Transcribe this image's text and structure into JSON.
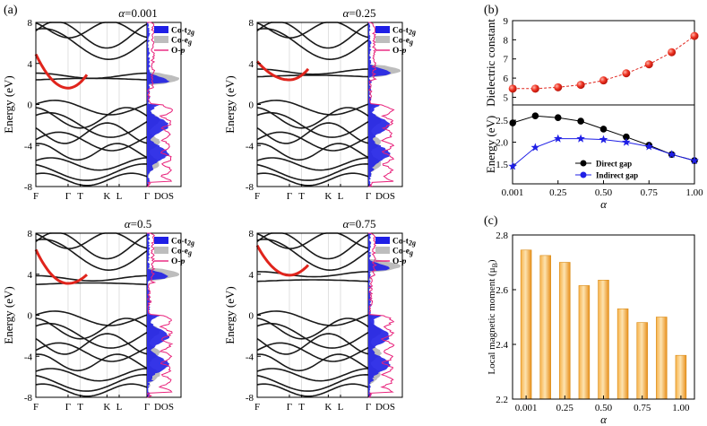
{
  "panel_labels": {
    "a": "(a)",
    "b": "(b)",
    "c": "(c)"
  },
  "chart_data": [
    {
      "type": "line",
      "title": "α=0.001",
      "title_prefix": "α",
      "title_value": "=0.001",
      "ylabel": "Energy (eV)",
      "ylim": [
        -8,
        8
      ],
      "yticks": [
        "-8",
        "-4",
        "0",
        "4",
        "8"
      ],
      "kpath": [
        "F",
        "Γ",
        "T",
        "K",
        "L",
        "Γ"
      ],
      "dos_xlabel": "DOS",
      "legend": [
        "Co-t2g",
        "Co-eg",
        "O-p"
      ],
      "highlight_band": {
        "min_at": "Γ",
        "min_energy": 1.6,
        "start_energy": 4.9,
        "end_energy": 5.4
      },
      "colors": {
        "band": "#1a1a1a",
        "highlight": "#e0241c",
        "t2g": "#1f1fe6",
        "eg": "#bdbdbd",
        "op": "#e8207a"
      }
    },
    {
      "type": "line",
      "title": "α=0.25",
      "title_prefix": "α",
      "title_value": "=0.25",
      "ylabel": "Energy (eV)",
      "ylim": [
        -8,
        8
      ],
      "yticks": [
        "-8",
        "-4",
        "0",
        "4",
        "8"
      ],
      "kpath": [
        "F",
        "Γ",
        "T",
        "K",
        "L",
        "Γ"
      ],
      "dos_xlabel": "DOS",
      "legend": [
        "Co-t2g",
        "Co-eg",
        "O-p"
      ],
      "highlight_band": {
        "min_at": "Γ",
        "min_energy": 2.4,
        "start_energy": 4.2,
        "end_energy": 5.5
      },
      "colors": {
        "band": "#1a1a1a",
        "highlight": "#e0241c",
        "t2g": "#1f1fe6",
        "eg": "#bdbdbd",
        "op": "#e8207a"
      }
    },
    {
      "type": "line",
      "title": "α=0.5",
      "title_prefix": "α",
      "title_value": "=0.5",
      "ylabel": "Energy (eV)",
      "ylim": [
        -8,
        8
      ],
      "yticks": [
        "-8",
        "-4",
        "0",
        "4",
        "8"
      ],
      "kpath": [
        "F",
        "Γ",
        "T",
        "K",
        "L",
        "Γ"
      ],
      "dos_xlabel": "DOS",
      "legend": [
        "Co-t2g",
        "Co-eg",
        "O-p"
      ],
      "highlight_band": {
        "min_at": "Γ",
        "min_energy": 3.1,
        "start_energy": 6.4,
        "end_energy": 5.6
      },
      "colors": {
        "band": "#1a1a1a",
        "highlight": "#e0241c",
        "t2g": "#1f1fe6",
        "eg": "#bdbdbd",
        "op": "#e8207a"
      }
    },
    {
      "type": "line",
      "title": "α=0.75",
      "title_prefix": "α",
      "title_value": "=0.75",
      "ylabel": "Energy (eV)",
      "ylim": [
        -8,
        8
      ],
      "yticks": [
        "-8",
        "-4",
        "0",
        "4",
        "8"
      ],
      "kpath": [
        "F",
        "Γ",
        "T",
        "K",
        "L",
        "Γ"
      ],
      "dos_xlabel": "DOS",
      "legend": [
        "Co-t2g",
        "Co-eg",
        "O-p"
      ],
      "highlight_band": {
        "min_at": "Γ",
        "min_energy": 3.9,
        "start_energy": 6.8,
        "end_energy": 6.8
      },
      "colors": {
        "band": "#1a1a1a",
        "highlight": "#e0241c",
        "t2g": "#1f1fe6",
        "eg": "#bdbdbd",
        "op": "#e8207a"
      }
    },
    {
      "type": "line",
      "title": "",
      "ylabel": "Dielectric constant",
      "ylim": [
        4.6,
        9
      ],
      "yticks": [
        5,
        6,
        7,
        8,
        9
      ],
      "xlim": [
        0,
        1
      ],
      "x": [
        0.001,
        0.125,
        0.25,
        0.375,
        0.5,
        0.625,
        0.75,
        0.875,
        1.0
      ],
      "series": [
        {
          "name": "Dielectric constant",
          "values": [
            5.45,
            5.45,
            5.52,
            5.65,
            5.88,
            6.25,
            6.72,
            7.35,
            8.2
          ],
          "color": "#e0241c"
        }
      ]
    },
    {
      "type": "line",
      "title": "",
      "xlabel": "α",
      "ylabel": "Energy (eV)",
      "ylim": [
        1.05,
        2.85
      ],
      "yticks": [
        1.5,
        2.0,
        2.5
      ],
      "xlim": [
        0,
        1
      ],
      "xtick_labels": [
        "0.001",
        "0.25",
        "0.50",
        "0.75",
        "1.00"
      ],
      "x": [
        0.001,
        0.125,
        0.25,
        0.375,
        0.5,
        0.625,
        0.75,
        0.875,
        1.0
      ],
      "series": [
        {
          "name": "Direct gap",
          "values": [
            2.44,
            2.6,
            2.56,
            2.48,
            2.3,
            2.12,
            1.93,
            1.72,
            1.58
          ],
          "color": "#000000"
        },
        {
          "name": "Indirect gap",
          "values": [
            1.45,
            1.88,
            2.08,
            2.08,
            2.06,
            2.0,
            1.9,
            1.72,
            1.58
          ],
          "color": "#1f1fe6"
        }
      ]
    },
    {
      "type": "bar",
      "title": "",
      "xlabel": "α",
      "ylabel": "Local magnetic moment (μB)",
      "ylim": [
        2.2,
        2.8
      ],
      "yticks": [
        "2.2",
        "2.4",
        "2.6",
        "2.8"
      ],
      "categories": [
        "0.001",
        "0.125",
        "0.25",
        "0.375",
        "0.50",
        "0.625",
        "0.75",
        "0.875",
        "1.00"
      ],
      "xtick_labels": [
        "0.001",
        "0.25",
        "0.50",
        "0.75",
        "1.00"
      ],
      "values": [
        2.745,
        2.725,
        2.7,
        2.615,
        2.635,
        2.53,
        2.48,
        2.5,
        2.36
      ],
      "color": "#f5a623"
    }
  ]
}
